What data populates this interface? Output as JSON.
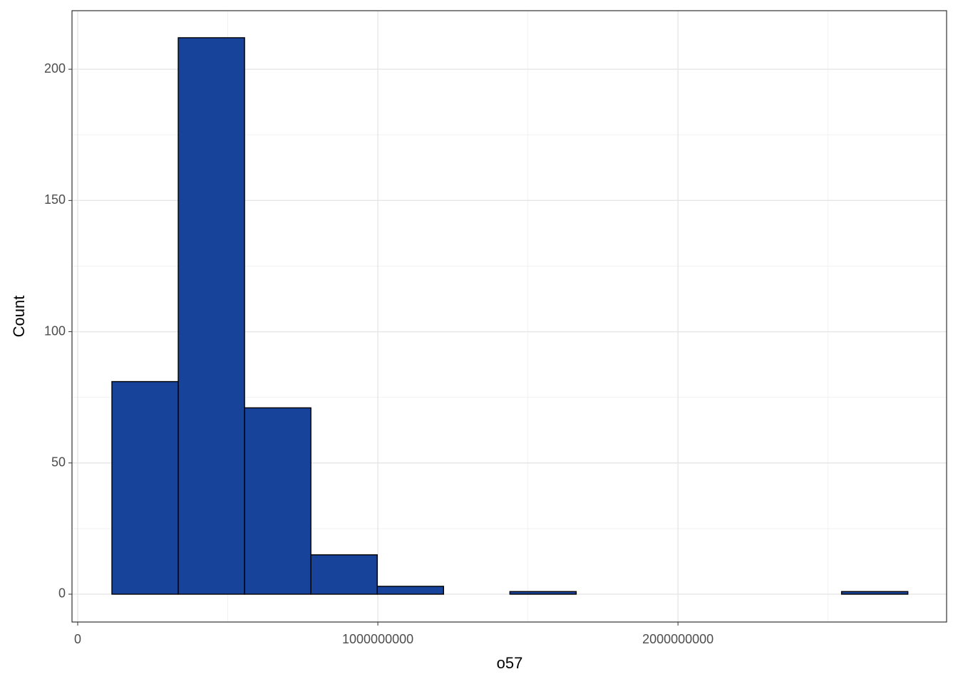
{
  "chart_data": {
    "type": "histogram",
    "bins": [
      114000000,
      335000000,
      556000000,
      777000000,
      998000000,
      1219000000,
      1440000000,
      1661000000,
      1882000000,
      2103000000,
      2324000000,
      2545000000,
      2766000000
    ],
    "counts": [
      81,
      212,
      71,
      15,
      3,
      0,
      1,
      0,
      0,
      0,
      0,
      1
    ],
    "color": "#18439a",
    "edgecolor": "#000000",
    "xlabel": "o57",
    "ylabel": "Count",
    "xlim": [
      -19000000,
      2895000000
    ],
    "ylim": [
      -10.6,
      222.3
    ],
    "xticks": [
      0,
      1000000000,
      2000000000
    ],
    "yticks": [
      0,
      50,
      100,
      150,
      200
    ],
    "xminor": [
      500000000,
      1500000000,
      2500000000
    ],
    "yminor": [
      25,
      75,
      125,
      175
    ],
    "grid": true
  }
}
